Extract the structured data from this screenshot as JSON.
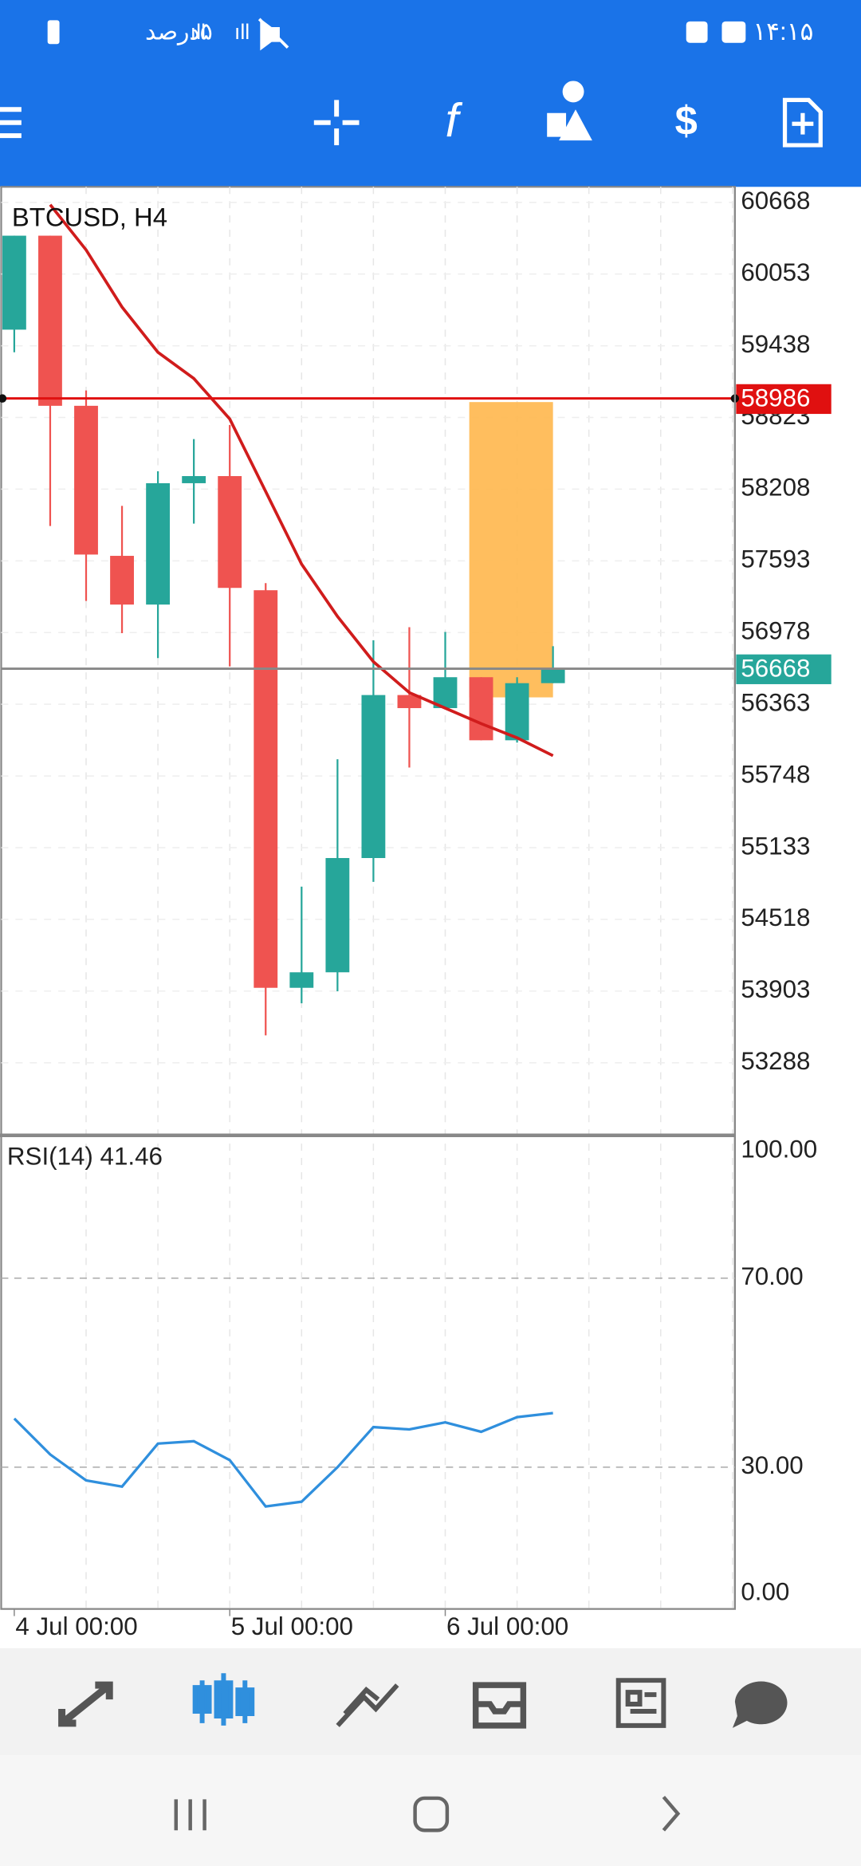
{
  "status_bar": {
    "battery": "۵درصد",
    "time": "۱۴:۱۵"
  },
  "chart_data": [
    {
      "type": "candlestick",
      "title": "BTCUSD, H4",
      "categories": [
        "4 Jul 00:00",
        null,
        null,
        null,
        null,
        null,
        "5 Jul 00:00",
        null,
        null,
        null,
        null,
        null,
        "6 Jul 00:00",
        null,
        null,
        null
      ],
      "open": [
        59576,
        60382,
        58923,
        57636,
        57218,
        58259,
        58320,
        57341,
        53931,
        54064,
        55044,
        56442,
        56330,
        56595,
        56054,
        56544
      ],
      "high": [
        60382,
        60382,
        59055,
        58065,
        58361,
        58637,
        58759,
        57402,
        54799,
        55891,
        56912,
        57024,
        56983,
        56595,
        56595,
        56861
      ],
      "low": [
        59382,
        57892,
        57249,
        56973,
        56759,
        57912,
        56687,
        53523,
        53798,
        53901,
        54840,
        55820,
        56330,
        56054,
        56034,
        56544
      ],
      "close": [
        60382,
        58923,
        57647,
        57218,
        58259,
        58320,
        57361,
        53931,
        54064,
        55044,
        56442,
        56330,
        56595,
        56054,
        56544,
        56668
      ],
      "up_color": "#26a69a",
      "down_color": "#ef5350",
      "overlays": [
        {
          "color": "#d01c1c",
          "values": [
            null,
            60648,
            60260,
            59770,
            59382,
            59157,
            58810,
            58188,
            57565,
            57116,
            56728,
            56463,
            56330,
            56197,
            56075,
            55922
          ]
        }
      ],
      "price_lines": [
        {
          "value": 58986,
          "color": "#e01010"
        },
        {
          "value": 56668,
          "color": "#26a69a"
        }
      ],
      "highlight": {
        "from": 58955,
        "to": 56422,
        "color": "#ffb74d"
      },
      "ylim": [
        52676,
        60801
      ],
      "yticks": [
        60668,
        60053,
        59438,
        58823,
        58208,
        57593,
        56978,
        56363,
        55748,
        55133,
        54518,
        53903,
        53288
      ],
      "grid": true
    },
    {
      "type": "line",
      "title": "RSI(14) 41.46",
      "color": "#2f8fdd",
      "values": [
        40.3,
        32.7,
        27.2,
        25.9,
        35,
        35.5,
        31.5,
        21.7,
        22.7,
        30,
        38.5,
        38,
        39.5,
        37.5,
        40.6,
        41.46
      ],
      "ylim": [
        0,
        100
      ],
      "yticks": [
        {
          "value": 100,
          "label": "100.00"
        },
        {
          "value": 70,
          "label": "70.00"
        },
        {
          "value": 30,
          "label": "30.00"
        },
        {
          "value": 0,
          "label": "0.00"
        }
      ]
    }
  ]
}
